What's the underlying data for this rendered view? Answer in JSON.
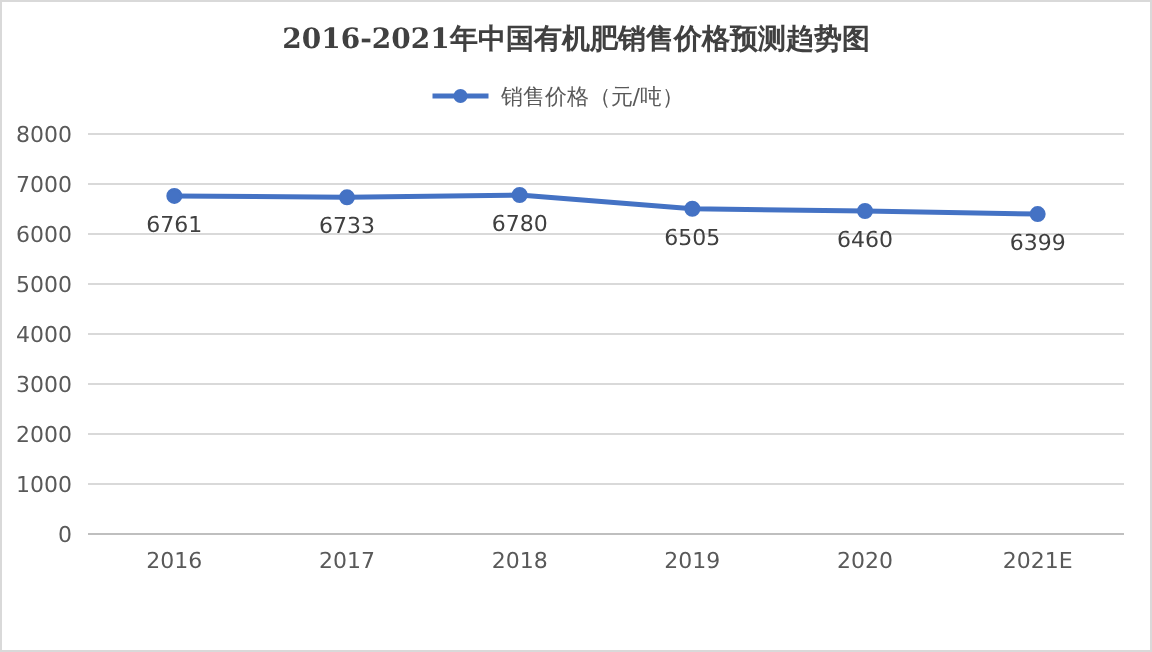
{
  "chart_data": {
    "type": "line",
    "title": "2016-2021年中国有机肥销售价格预测趋势图",
    "categories": [
      "2016",
      "2017",
      "2018",
      "2019",
      "2020",
      "2021E"
    ],
    "series": [
      {
        "name": "销售价格（元/吨）",
        "color": "#4472c4",
        "values": [
          6761,
          6733,
          6780,
          6505,
          6460,
          6399
        ]
      }
    ],
    "ylim": [
      0,
      8000
    ],
    "yticks": [
      0,
      1000,
      2000,
      3000,
      4000,
      5000,
      6000,
      7000,
      8000
    ],
    "grid": "y",
    "legend": "top",
    "marker": "circle",
    "line_style": "solid",
    "data_labels": true
  }
}
